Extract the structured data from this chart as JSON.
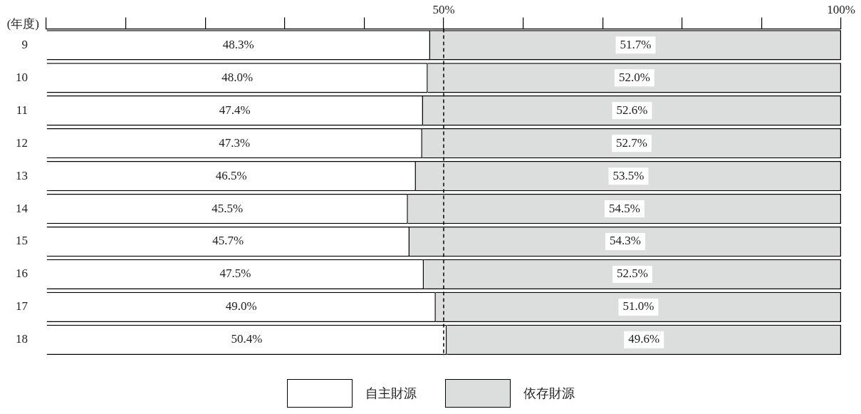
{
  "chart_data": {
    "type": "bar",
    "orientation": "horizontal",
    "stacked": true,
    "ylabel": "(年度)",
    "categories": [
      "9",
      "10",
      "11",
      "12",
      "13",
      "14",
      "15",
      "16",
      "17",
      "18"
    ],
    "series": [
      {
        "name": "自主財源",
        "color": "#ffffff",
        "values": [
          48.3,
          48.0,
          47.4,
          47.3,
          46.5,
          45.5,
          45.7,
          47.5,
          49.0,
          50.4
        ],
        "value_labels": [
          "48.3%",
          "48.0%",
          "47.4%",
          "47.3%",
          "46.5%",
          "45.5%",
          "45.7%",
          "47.5%",
          "49.0%",
          "50.4%"
        ]
      },
      {
        "name": "依存財源",
        "color": "#dcdddd",
        "values": [
          51.7,
          52.0,
          52.6,
          52.7,
          53.5,
          54.5,
          54.3,
          52.5,
          51.0,
          49.6
        ],
        "value_labels": [
          "51.7%",
          "52.0%",
          "52.6%",
          "52.7%",
          "53.5%",
          "54.5%",
          "54.3%",
          "52.5%",
          "51.0%",
          "49.6%"
        ]
      }
    ],
    "xlim": [
      0,
      100
    ],
    "xticks": [
      {
        "value": 0,
        "label": null
      },
      {
        "value": 10,
        "label": null
      },
      {
        "value": 20,
        "label": null
      },
      {
        "value": 30,
        "label": null
      },
      {
        "value": 40,
        "label": null
      },
      {
        "value": 50,
        "label": "50%"
      },
      {
        "value": 60,
        "label": null
      },
      {
        "value": 70,
        "label": null
      },
      {
        "value": 80,
        "label": null
      },
      {
        "value": 90,
        "label": null
      },
      {
        "value": 100,
        "label": "100%"
      }
    ],
    "ref_lines": [
      {
        "axis": "x",
        "value": 50,
        "label": null,
        "line_style": "dashed",
        "color": "#000000"
      }
    ],
    "grid": false,
    "legend": "bottom"
  }
}
